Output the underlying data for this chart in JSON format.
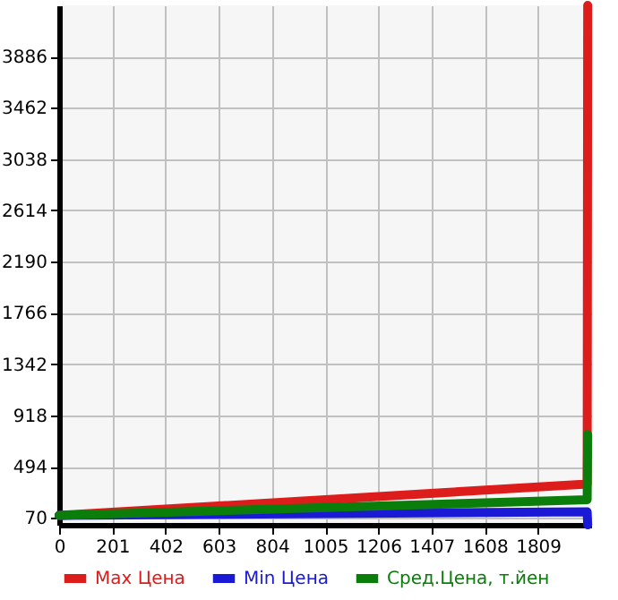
{
  "chart_data": {
    "type": "line",
    "xlim": [
      0,
      2010
    ],
    "xticks": [
      0,
      201,
      402,
      603,
      804,
      1005,
      1206,
      1407,
      1608,
      1809
    ],
    "ylim": [
      13,
      4310
    ],
    "yticks": [
      70,
      494,
      918,
      1342,
      1766,
      2190,
      2614,
      3038,
      3462,
      3886
    ],
    "grid": true,
    "legend": "bottom",
    "line_style": "solid",
    "marker": "none",
    "series": [
      {
        "name": "Max Цена",
        "color": "#dd1c1c",
        "x": [
          0,
          1995,
          1997
        ],
        "values": [
          90,
          350,
          4310
        ]
      },
      {
        "name": "Min Цена",
        "color": "#1a1ad6",
        "x": [
          0,
          1995,
          1997
        ],
        "values": [
          90,
          120,
          13
        ]
      },
      {
        "name": "Сред.Цена, т.йен",
        "color": "#0b7d0b",
        "x": [
          0,
          1995,
          1997
        ],
        "values": [
          90,
          220,
          760
        ]
      }
    ]
  }
}
